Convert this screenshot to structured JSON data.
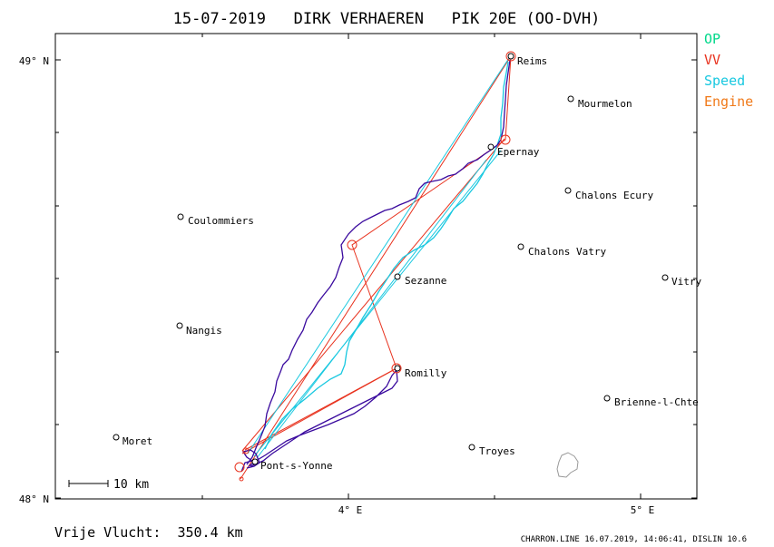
{
  "chart_data": {
    "type": "map",
    "title": "15-07-2019   DIRK VERHAEREN   PIK 20E (OO-DVH)",
    "x_axis": {
      "ticks": [
        {
          "value": 4.0,
          "label": "4° E"
        },
        {
          "value": 5.0,
          "label": "5° E"
        }
      ],
      "range": [
        3.0,
        5.2
      ]
    },
    "y_axis": {
      "ticks": [
        {
          "value": 49.0,
          "label": "49° N"
        },
        {
          "value": 48.0,
          "label": "48° N"
        }
      ],
      "range": [
        47.97,
        49.05
      ]
    },
    "grid": false,
    "legend_position": "top-right",
    "legend": [
      {
        "label": "OP",
        "color": "#00d88a"
      },
      {
        "label": "VV",
        "color": "#e8321e"
      },
      {
        "label": "Speed",
        "color": "#18c8e0"
      },
      {
        "label": "Engine",
        "color": "#f07a1a"
      }
    ],
    "places": [
      {
        "name": "Reims",
        "lon": 4.55,
        "lat": 49.0
      },
      {
        "name": "Mourmelon",
        "lon": 4.76,
        "lat": 48.91
      },
      {
        "name": "Epernay",
        "lon": 4.49,
        "lat": 48.8
      },
      {
        "name": "Chalons Ecury",
        "lon": 4.75,
        "lat": 48.7
      },
      {
        "name": "Coulommiers",
        "lon": 3.44,
        "lat": 48.64
      },
      {
        "name": "Chalons Vatry",
        "lon": 4.59,
        "lat": 48.58
      },
      {
        "name": "Sezanne",
        "lon": 4.17,
        "lat": 48.5
      },
      {
        "name": "Vitry",
        "lon": 5.08,
        "lat": 48.5
      },
      {
        "name": "Nangis",
        "lon": 3.43,
        "lat": 48.39
      },
      {
        "name": "Romilly",
        "lon": 4.17,
        "lat": 48.29
      },
      {
        "name": "Brienne-l-Chte",
        "lon": 4.89,
        "lat": 48.23
      },
      {
        "name": "Moret",
        "lon": 3.21,
        "lat": 48.14
      },
      {
        "name": "Troyes",
        "lon": 4.43,
        "lat": 48.12
      },
      {
        "name": "Pont-s-Yonne",
        "lon": 3.7,
        "lat": 48.09
      }
    ],
    "turnpoints": [
      {
        "lon": 3.66,
        "lat": 48.07
      },
      {
        "lon": 4.55,
        "lat": 49.01
      },
      {
        "lon": 4.54,
        "lat": 48.82
      },
      {
        "lon": 4.01,
        "lat": 48.58
      },
      {
        "lon": 4.17,
        "lat": 48.29
      },
      {
        "lon": 3.67,
        "lat": 48.1
      }
    ],
    "scale_label": "10 km",
    "distance_label": "Vrije Vlucht:  350.4 km",
    "footer": "CHARRON.LINE 16.07.2019, 14:06:41, DISLIN 10.6"
  }
}
